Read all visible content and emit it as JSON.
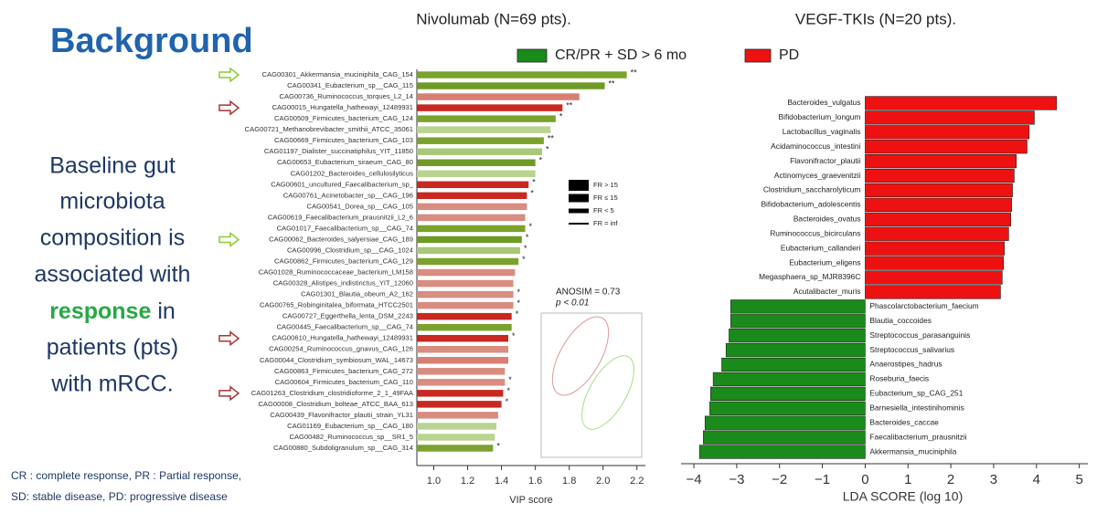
{
  "title": "Background",
  "body": [
    "Baseline gut",
    "microbiota",
    "composition is",
    "associated with",
    "response",
    "in",
    "patients (pts)",
    "with mRCC."
  ],
  "footnote": [
    "CR : complete response, PR : Partial response,",
    "SD: stable disease, PD: progressive disease"
  ],
  "chart_data": [
    {
      "type": "bar",
      "orientation": "horizontal",
      "title": "Nivolumab (N=69 pts).",
      "xlabel": "VIP score",
      "categories": [
        "CAG00301_Akkermansia_muciniphila_CAG_154",
        "CAG00341_Eubacterium_sp__CAG_115",
        "CAG00736_Ruminococcus_torques_L2_14",
        "CAG00015_Hungatella_hathewayi_12489931",
        "CAG00509_Firmicutes_bacterium_CAG_124",
        "CAG00721_Methanobrevibacter_smithii_ATCC_35061",
        "CAG00669_Firmicutes_bacterium_CAG_103",
        "CAG01197_Dialister_succinatiphilus_YIT_11850",
        "CAG00653_Eubacterium_siraeum_CAG_80",
        "CAG01202_Bacteroides_cellulosilyticus",
        "CAG00601_uncultured_Faecalibacterium_sp_",
        "CAG00761_Acinetobacter_sp__CAG_196",
        "CAG00541_Dorea_sp__CAG_105",
        "CAG00619_Faecalibacterium_prausnitzii_L2_6",
        "CAG01017_Faecalibacterium_sp__CAG_74",
        "CAG00062_Bacteroides_salyersiae_CAG_189",
        "CAG00996_Clostridium_sp__CAG_1024",
        "CAG00862_Firmicutes_bacterium_CAG_129",
        "CAG01028_Ruminococcaceae_bacterium_LM158",
        "CAG00328_Alistipes_indistinctus_YIT_12060",
        "CAG01301_Blautia_obeum_A2_162",
        "CAG00765_Robinginitalea_biformata_HTCC2501",
        "CAG00727_Eggerthella_lenta_DSM_2243",
        "CAG00445_Faecalibacterium_sp__CAG_74",
        "CAG00610_Hungatella_hathewayi_12489931",
        "CAG00254_Ruminococcus_gnavus_CAG_126",
        "CAG00044_Clostridium_symbiosum_WAL_14673",
        "CAG00863_Firmicutes_bacterium_CAG_272",
        "CAG00604_Firmicutes_bacterium_CAG_110",
        "CAG01263_Clostridium_clostridioforme_2_1_49FAA",
        "CAG00008_Clostridium_bolteae_ATCC_BAA_613",
        "CAG00439_Flavonifractor_plautii_strain_YL31",
        "CAG01169_Eubacterium_sp__CAG_180",
        "CAG00482_Ruminococcus_sp__SR1_5",
        "CAG00880_Subdoligranulum_sp__CAG_314"
      ],
      "values": [
        2.14,
        2.01,
        1.86,
        1.76,
        1.72,
        1.69,
        1.65,
        1.64,
        1.6,
        1.6,
        1.56,
        1.55,
        1.55,
        1.54,
        1.54,
        1.52,
        1.51,
        1.5,
        1.48,
        1.47,
        1.47,
        1.47,
        1.46,
        1.46,
        1.44,
        1.44,
        1.44,
        1.42,
        1.42,
        1.41,
        1.4,
        1.38,
        1.37,
        1.36,
        1.35
      ],
      "colors": [
        "#7aa22c",
        "#6f9a26",
        "#d77f72",
        "#c8281f",
        "#7aa22c",
        "#b9d48e",
        "#7aa22c",
        "#a9c877",
        "#6f9a26",
        "#b9d48e",
        "#c8281f",
        "#c8281f",
        "#d98c80",
        "#d98c80",
        "#7aa22c",
        "#6f9a26",
        "#a9c877",
        "#7aa22c",
        "#d98c80",
        "#d98c80",
        "#d98c80",
        "#d98c80",
        "#c8281f",
        "#7aa22c",
        "#c8281f",
        "#d98c80",
        "#d77f72",
        "#d98c80",
        "#d98c80",
        "#c8281f",
        "#c8281f",
        "#d98c80",
        "#b9d48e",
        "#b9d48e",
        "#7aa22c"
      ],
      "significance": [
        "**",
        "**",
        null,
        "**",
        "*",
        null,
        "**",
        "*",
        "*",
        null,
        "*",
        "*",
        null,
        null,
        "*",
        "*",
        "*",
        "*",
        null,
        null,
        "*",
        "*",
        "*",
        null,
        "*",
        null,
        null,
        null,
        "*",
        "*",
        "*",
        null,
        null,
        null,
        "*"
      ],
      "xlim": [
        0.9,
        2.25
      ],
      "xticks": [
        {
          "value": 1,
          "label": "1.0"
        },
        1.2,
        1.4,
        1.6,
        1.8,
        {
          "value": 2,
          "label": "2.0"
        },
        2.2
      ],
      "fr_legend": [
        "FR > 15",
        "FR ≤ 15",
        "FR < 5",
        "FR = inf"
      ],
      "annotations": [
        "ANOSIM = 0.73",
        "p < 0.01"
      ]
    },
    {
      "type": "bar",
      "orientation": "horizontal",
      "title": "VEGF-TKIs (N=20 pts).",
      "xlabel": "LDA SCORE (log 10)",
      "categories": [
        "Bacteroides_vulgatus",
        "Bifidobacterium_longum",
        "Lactobacillus_vaginalis",
        "Acidaminococcus_intestini",
        "Flavonifractor_plautii",
        "Actinomyces_graevenitzii",
        "Clostridium_saccharolyticum",
        "Bifidobacterium_adolescentis",
        "Bacteroides_ovatus",
        "Ruminococcus_bicirculans",
        "Eubacterium_callanderi",
        "Eubacterium_eligens",
        "Megasphaera_sp_MJR8396C",
        "Acutalibacter_muris",
        "Phascolarctobacterium_faecium",
        "Blautia_coccoides",
        "Streptococcus_parasanguinis",
        "Streptococcus_salivarius",
        "Anaerostipes_hadrus",
        "Roseburia_faecis",
        "Eubacterium_sp_CAG_251",
        "Barnesiella_intestinihominis",
        "Bacteroides_caccae",
        "Faecalibacterium_prausnitzii",
        "Akkermansia_muciniphila"
      ],
      "series": [
        {
          "name": "CR/PR + SD > 6 mo",
          "color": "#1a8a1a",
          "values": [
            null,
            null,
            null,
            null,
            null,
            null,
            null,
            null,
            null,
            null,
            null,
            null,
            null,
            null,
            -3.14,
            -3.14,
            -3.18,
            -3.25,
            -3.35,
            -3.55,
            -3.61,
            -3.63,
            -3.74,
            -3.78,
            -3.87
          ]
        },
        {
          "name": "PD",
          "color": "#ee1111",
          "values": [
            4.47,
            3.95,
            3.83,
            3.78,
            3.53,
            3.48,
            3.44,
            3.42,
            3.4,
            3.35,
            3.25,
            3.23,
            3.2,
            3.16,
            null,
            null,
            null,
            null,
            null,
            null,
            null,
            null,
            null,
            null,
            null
          ]
        }
      ],
      "xlim": [
        -4.3,
        5.2
      ],
      "xticks": [
        {
          "value": -4,
          "label": "−4"
        },
        {
          "value": -3,
          "label": "−3"
        },
        {
          "value": -2,
          "label": "−2"
        },
        {
          "value": -1,
          "label": "−1"
        },
        0,
        1,
        2,
        3,
        4,
        5
      ]
    }
  ]
}
